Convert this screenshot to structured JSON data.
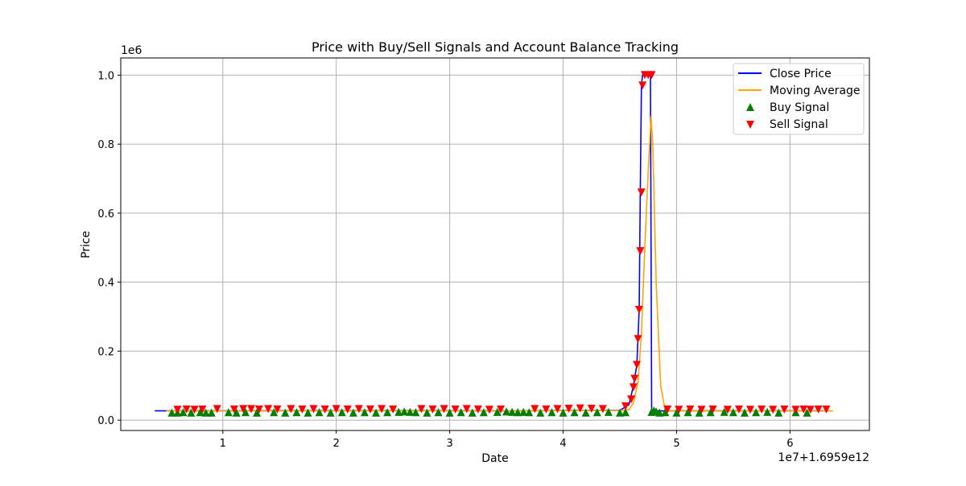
{
  "chart_data": {
    "type": "line",
    "title": "Price with Buy/Sell Signals and Account Balance Tracking",
    "xlabel": "Date",
    "ylabel": "Price",
    "x_offset_text": "1e7+1.6959e12",
    "y_offset_text": "1e6",
    "xlim": [
      0.1,
      6.7
    ],
    "ylim": [
      -30000,
      1050000
    ],
    "x_ticks": [
      1,
      2,
      3,
      4,
      5,
      6
    ],
    "x_tick_labels": [
      "1",
      "2",
      "3",
      "4",
      "5",
      "6"
    ],
    "y_ticks": [
      0,
      200000,
      400000,
      600000,
      800000,
      1000000
    ],
    "y_tick_labels": [
      "0.0",
      "0.2",
      "0.4",
      "0.6",
      "0.8",
      "1.0"
    ],
    "grid": true,
    "legend_position": "top-right",
    "legend": [
      "Close Price",
      "Moving Average",
      "Buy Signal",
      "Sell Signal"
    ],
    "colors": {
      "close": "#0000ff",
      "ma": "#ffa500",
      "buy": "#008000",
      "sell": "#ff0000",
      "grid": "#b0b0b0"
    },
    "series": [
      {
        "name": "Close Price",
        "x": [
          0.4,
          0.55,
          1.0,
          1.5,
          2.0,
          2.5,
          3.0,
          3.5,
          4.0,
          4.5,
          4.58,
          4.62,
          4.65,
          4.67,
          4.68,
          4.69,
          4.7,
          4.72,
          4.75,
          4.77,
          4.78,
          4.79,
          4.82,
          4.85,
          4.9,
          5.0,
          5.5,
          6.0,
          6.35
        ],
        "y": [
          27000,
          27000,
          27000,
          27500,
          27500,
          27500,
          27500,
          27000,
          28000,
          28000,
          45000,
          100000,
          160000,
          320000,
          660000,
          970000,
          1000000,
          1000000,
          1000000,
          1000000,
          30000,
          28000,
          27000,
          27000,
          26500,
          27000,
          27000,
          27000,
          27000
        ]
      },
      {
        "name": "Moving Average",
        "x": [
          0.5,
          1.0,
          2.0,
          3.0,
          4.0,
          4.5,
          4.58,
          4.62,
          4.66,
          4.69,
          4.72,
          4.75,
          4.775,
          4.79,
          4.82,
          4.86,
          4.9,
          5.0,
          6.0,
          6.38
        ],
        "y": [
          27000,
          27000,
          27200,
          27200,
          27500,
          28000,
          30000,
          50000,
          110000,
          250000,
          500000,
          720000,
          880000,
          800000,
          400000,
          100000,
          27000,
          27000,
          27000,
          27000
        ]
      }
    ],
    "buy_signals": {
      "name": "Buy Signal",
      "x": [
        0.55,
        0.6,
        0.65,
        0.72,
        0.8,
        0.85,
        0.9,
        1.05,
        1.12,
        1.2,
        1.3,
        1.45,
        1.55,
        1.65,
        1.75,
        1.85,
        1.95,
        2.05,
        2.15,
        2.25,
        2.35,
        2.45,
        2.55,
        2.6,
        2.65,
        2.7,
        2.8,
        2.9,
        3.0,
        3.1,
        3.2,
        3.3,
        3.42,
        3.5,
        3.55,
        3.6,
        3.65,
        3.7,
        3.8,
        3.9,
        4.0,
        4.1,
        4.2,
        4.3,
        4.4,
        4.5,
        4.55,
        4.78,
        4.8,
        4.82,
        4.85,
        4.9,
        5.0,
        5.1,
        5.2,
        5.3,
        5.42,
        5.5,
        5.6,
        5.7,
        5.8,
        5.9,
        6.05,
        6.15
      ],
      "y": [
        22000,
        22000,
        23000,
        22000,
        23000,
        22000,
        22000,
        23000,
        22000,
        23000,
        22000,
        23000,
        22000,
        23000,
        22000,
        23000,
        22000,
        23000,
        22000,
        23000,
        22000,
        23000,
        24000,
        25000,
        24000,
        23000,
        22000,
        23000,
        22000,
        23000,
        22000,
        23000,
        24000,
        25000,
        24000,
        23000,
        24000,
        23000,
        22000,
        23000,
        22000,
        23000,
        22000,
        23000,
        24000,
        22000,
        23000,
        24000,
        28000,
        25000,
        22000,
        23000,
        22000,
        23000,
        22000,
        23000,
        24000,
        23000,
        22000,
        23000,
        24000,
        22000,
        23000,
        22000
      ]
    },
    "sell_signals": {
      "name": "Sell Signal",
      "x": [
        0.6,
        0.68,
        0.75,
        0.82,
        0.95,
        1.1,
        1.18,
        1.25,
        1.32,
        1.4,
        1.48,
        1.6,
        1.7,
        1.8,
        1.9,
        2.0,
        2.1,
        2.2,
        2.3,
        2.4,
        2.5,
        2.75,
        2.85,
        2.95,
        3.05,
        3.15,
        3.25,
        3.35,
        3.45,
        3.75,
        3.85,
        3.95,
        4.05,
        4.15,
        4.25,
        4.35,
        4.55,
        4.6,
        4.62,
        4.63,
        4.65,
        4.66,
        4.67,
        4.68,
        4.69,
        4.7,
        4.72,
        4.75,
        4.78,
        4.92,
        5.02,
        5.12,
        5.22,
        5.32,
        5.45,
        5.55,
        5.65,
        5.75,
        5.85,
        5.95,
        6.05,
        6.12,
        6.18,
        6.25,
        6.32
      ],
      "y": [
        30000,
        31000,
        30000,
        31000,
        32000,
        31000,
        32000,
        32000,
        31000,
        32000,
        31000,
        32000,
        31000,
        32000,
        31000,
        32000,
        31000,
        32000,
        31000,
        32000,
        31000,
        32000,
        31000,
        32000,
        31000,
        32000,
        31000,
        30000,
        31000,
        32000,
        31000,
        32000,
        33000,
        34000,
        33000,
        32000,
        40000,
        60000,
        95000,
        120000,
        160000,
        235000,
        320000,
        490000,
        660000,
        970000,
        1000000,
        1000000,
        1000000,
        31000,
        30000,
        31000,
        30000,
        31000,
        30000,
        31000,
        30000,
        31000,
        30000,
        31000,
        30000,
        31000,
        30000,
        31000,
        31000
      ]
    }
  }
}
